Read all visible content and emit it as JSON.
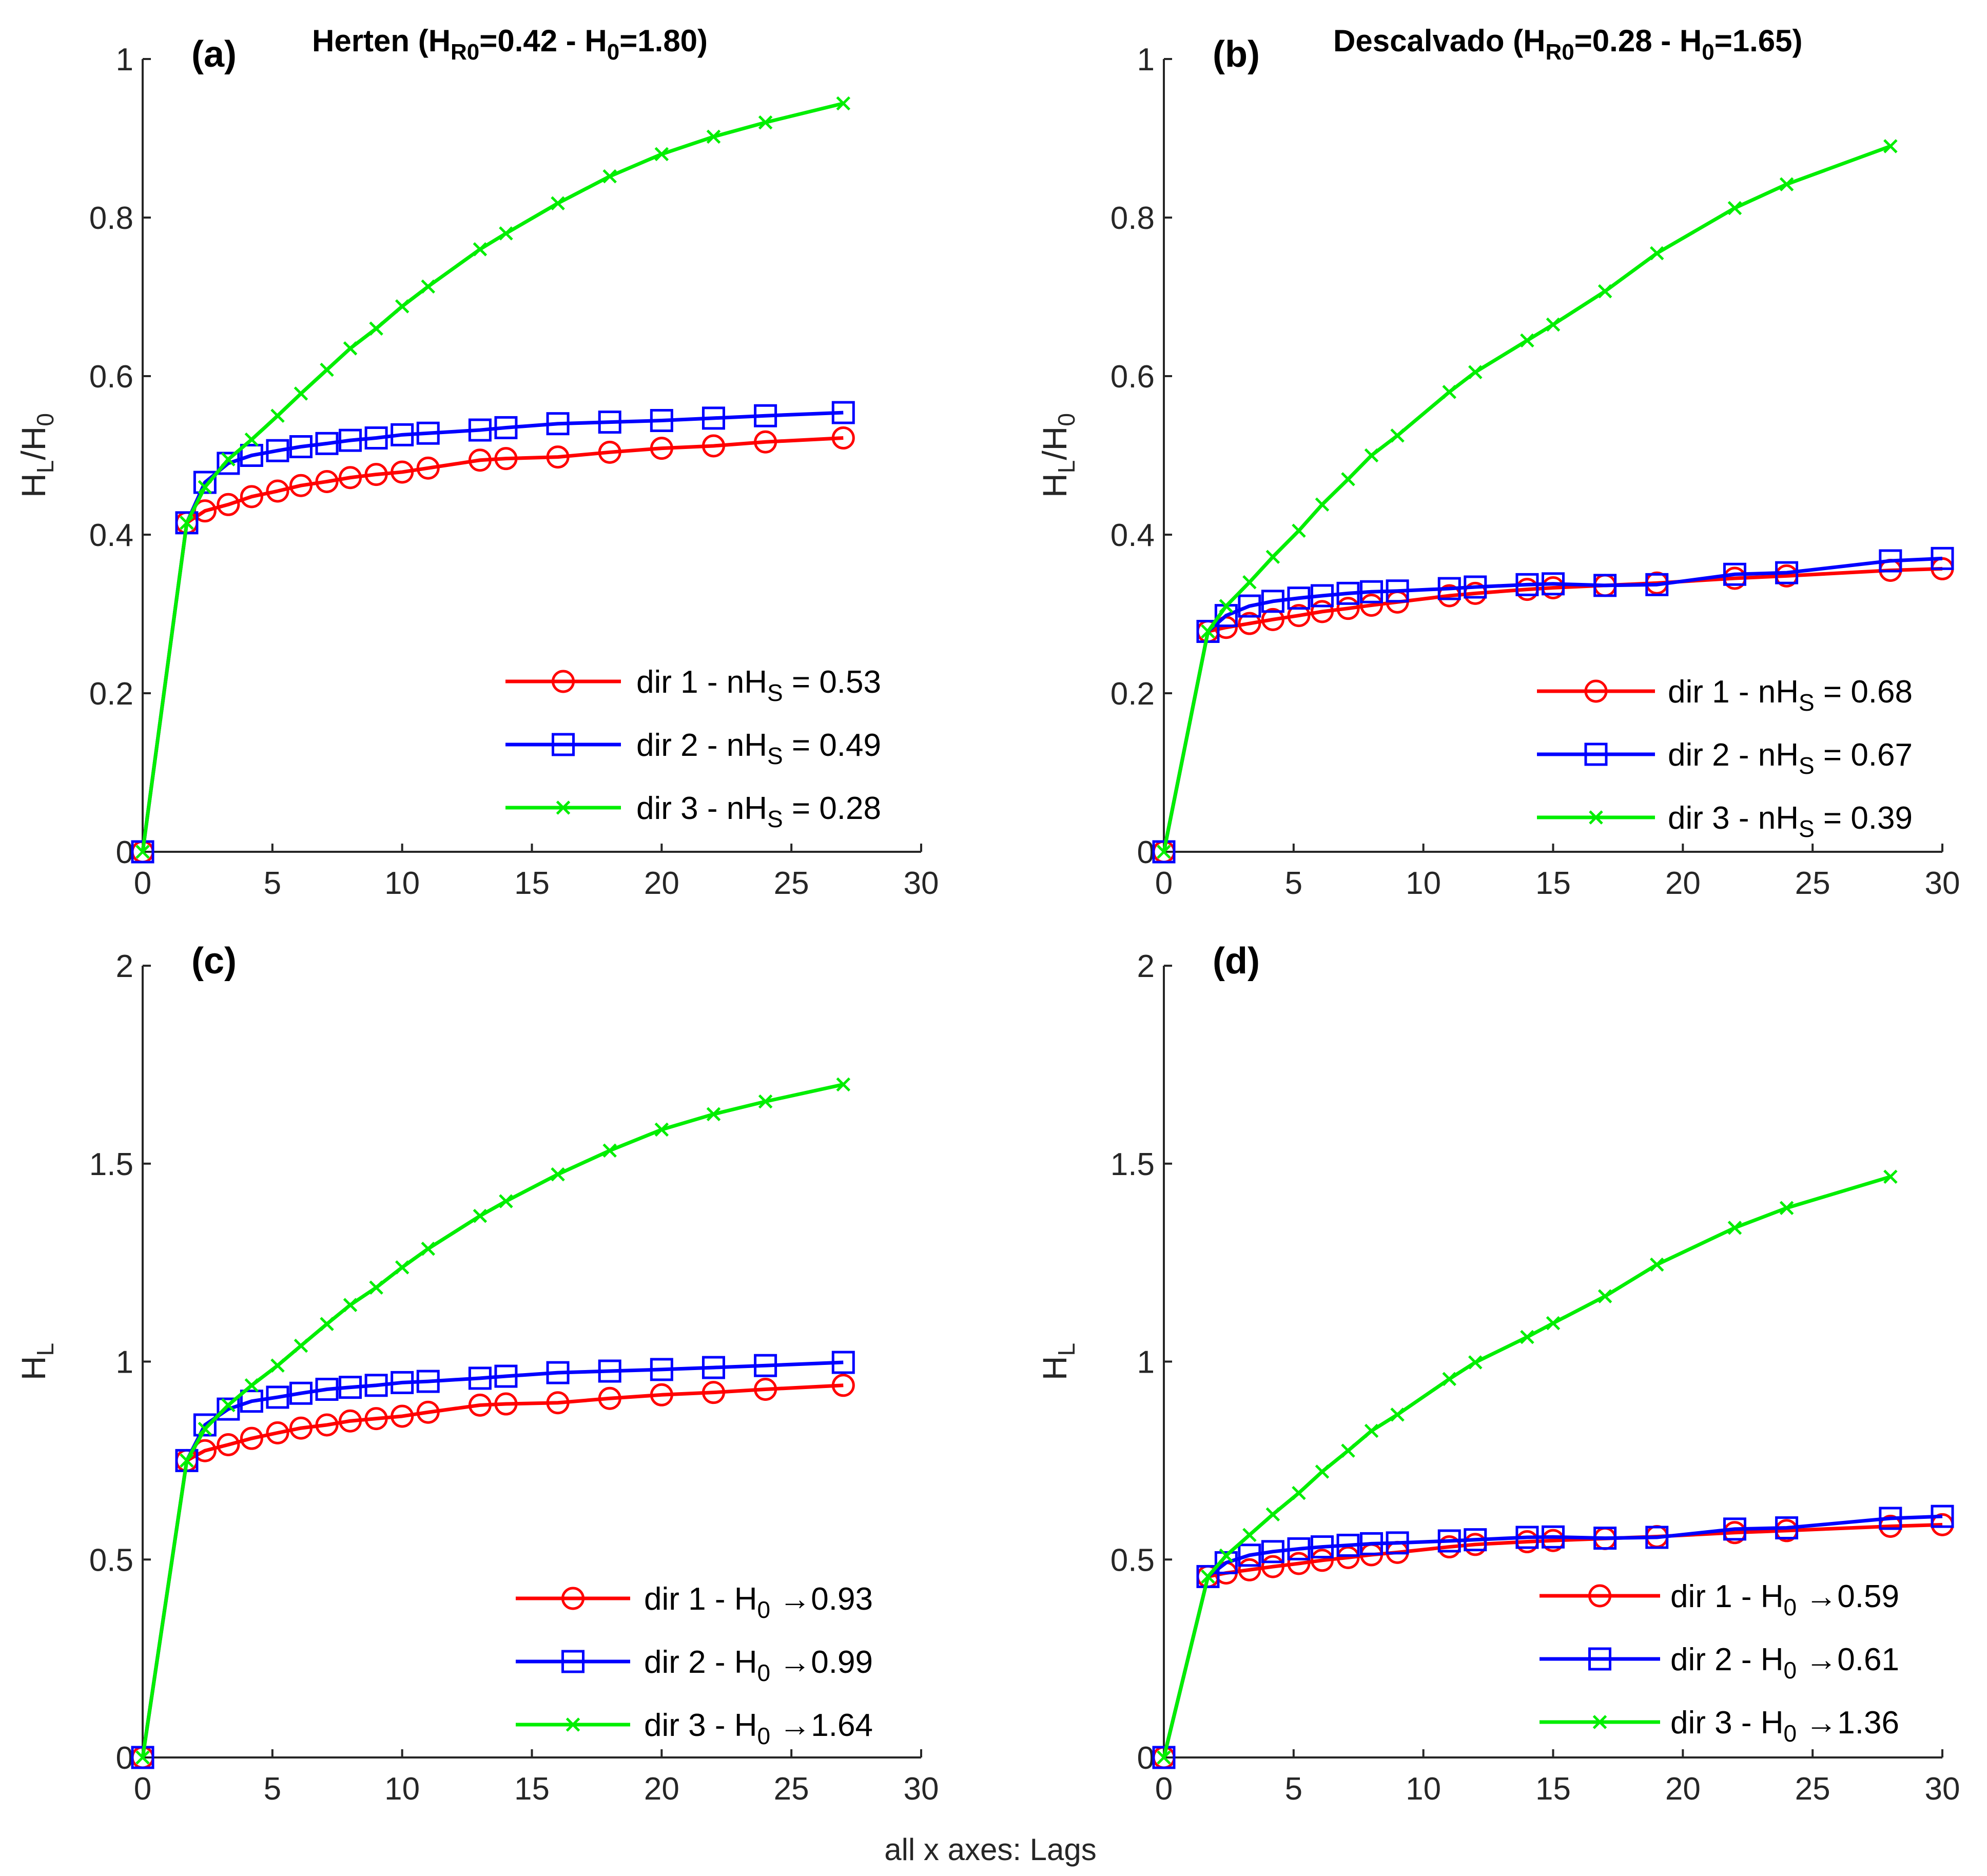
{
  "figure": {
    "footer_text": "all x axes: Lags",
    "colors": {
      "dir1": "#ff0000",
      "dir2": "#0000ff",
      "dir3": "#00ee00",
      "axis": "#262626"
    }
  },
  "chart_data": [
    {
      "id": "a",
      "type": "line",
      "panel_label": "(a)",
      "title": {
        "pre": "Herten (H",
        "sub1": "R0",
        "mid": "=0.42 - H",
        "sub2": "0",
        "post": "=1.80)"
      },
      "xlabel": "",
      "ylabel": {
        "main": "H",
        "sub1": "L",
        "mid": "/H",
        "sub2": "0"
      },
      "xlim": [
        0,
        30
      ],
      "ylim": [
        0,
        1
      ],
      "xticks": [
        0,
        5,
        10,
        15,
        20,
        25,
        30
      ],
      "xtick_labels": [
        "0",
        "5",
        "10",
        "15",
        "20",
        "25",
        "30"
      ],
      "yticks": [
        0,
        0.2,
        0.4,
        0.6,
        0.8,
        1
      ],
      "ytick_labels": [
        "0",
        "0.2",
        "0.4",
        "0.6",
        "0.8",
        "1"
      ],
      "legend_position": "bottom-right",
      "series": [
        {
          "name": "dir 1",
          "marker": "circle",
          "color": "#ff0000",
          "legend": {
            "pre": "dir 1 - nH",
            "sub": "S",
            "post": "= 0.53"
          },
          "x": [
            0,
            1.7,
            2.4,
            3.3,
            4.2,
            5.2,
            6.1,
            7.1,
            8.0,
            9.0,
            10.0,
            11.0,
            13.0,
            14.0,
            16.0,
            18.0,
            20.0,
            22.0,
            24.0,
            27.0
          ],
          "y": [
            0,
            0.415,
            0.43,
            0.438,
            0.448,
            0.455,
            0.462,
            0.467,
            0.472,
            0.476,
            0.479,
            0.484,
            0.494,
            0.496,
            0.498,
            0.504,
            0.509,
            0.512,
            0.517,
            0.522
          ]
        },
        {
          "name": "dir 2",
          "marker": "square",
          "color": "#0000ff",
          "legend": {
            "pre": "dir 2 - nH",
            "sub": "S",
            "post": "= 0.49"
          },
          "x": [
            0,
            1.7,
            2.4,
            3.3,
            4.2,
            5.2,
            6.1,
            7.1,
            8.0,
            9.0,
            10.0,
            11.0,
            13.0,
            14.0,
            16.0,
            18.0,
            20.0,
            22.0,
            24.0,
            27.0
          ],
          "y": [
            0,
            0.415,
            0.466,
            0.49,
            0.5,
            0.506,
            0.511,
            0.515,
            0.519,
            0.522,
            0.526,
            0.528,
            0.532,
            0.535,
            0.54,
            0.542,
            0.544,
            0.547,
            0.55,
            0.554
          ]
        },
        {
          "name": "dir 3",
          "marker": "x",
          "color": "#00ee00",
          "legend": {
            "pre": "dir 3 - nH",
            "sub": "S",
            "post": "= 0.28"
          },
          "x": [
            0,
            1.7,
            2.4,
            3.3,
            4.2,
            5.2,
            6.1,
            7.1,
            8.0,
            9.0,
            10.0,
            11.0,
            13.0,
            14.0,
            16.0,
            18.0,
            20.0,
            22.0,
            24.0,
            27.0
          ],
          "y": [
            0,
            0.415,
            0.46,
            0.495,
            0.52,
            0.55,
            0.578,
            0.608,
            0.635,
            0.66,
            0.688,
            0.713,
            0.76,
            0.78,
            0.818,
            0.852,
            0.88,
            0.902,
            0.92,
            0.944
          ]
        }
      ]
    },
    {
      "id": "b",
      "type": "line",
      "panel_label": "(b)",
      "title": {
        "pre": "Descalvado (H",
        "sub1": "R0",
        "mid": "=0.28 - H",
        "sub2": "0",
        "post": "=1.65)"
      },
      "xlabel": "",
      "ylabel": {
        "main": "H",
        "sub1": "L",
        "mid": "/H",
        "sub2": "0"
      },
      "xlim": [
        0,
        30
      ],
      "ylim": [
        0,
        1
      ],
      "xticks": [
        0,
        5,
        10,
        15,
        20,
        25,
        30
      ],
      "xtick_labels": [
        "0",
        "5",
        "10",
        "15",
        "20",
        "25",
        "30"
      ],
      "yticks": [
        0,
        0.2,
        0.4,
        0.6,
        0.8,
        1
      ],
      "ytick_labels": [
        "0",
        "0.2",
        "0.4",
        "0.6",
        "0.8",
        "1"
      ],
      "legend_position": "bottom-right",
      "series": [
        {
          "name": "dir 1",
          "marker": "circle",
          "color": "#ff0000",
          "legend": {
            "pre": "dir 1 - nH",
            "sub": "S",
            "post": "= 0.68"
          },
          "x": [
            0,
            1.7,
            2.4,
            3.3,
            4.2,
            5.2,
            6.1,
            7.1,
            8.0,
            9.0,
            11.0,
            12.0,
            14.0,
            15.0,
            17.0,
            19.0,
            22.0,
            24.0,
            28.0,
            30.0
          ],
          "y": [
            0,
            0.278,
            0.283,
            0.288,
            0.293,
            0.298,
            0.303,
            0.307,
            0.311,
            0.315,
            0.323,
            0.326,
            0.331,
            0.333,
            0.336,
            0.339,
            0.345,
            0.348,
            0.355,
            0.357
          ]
        },
        {
          "name": "dir 2",
          "marker": "square",
          "color": "#0000ff",
          "legend": {
            "pre": "dir 2 - nH",
            "sub": "S",
            "post": "= 0.67"
          },
          "x": [
            0,
            1.7,
            2.4,
            3.3,
            4.2,
            5.2,
            6.1,
            7.1,
            8.0,
            9.0,
            11.0,
            12.0,
            14.0,
            15.0,
            17.0,
            19.0,
            22.0,
            24.0,
            28.0,
            30.0
          ],
          "y": [
            0,
            0.278,
            0.298,
            0.31,
            0.316,
            0.32,
            0.323,
            0.326,
            0.328,
            0.329,
            0.332,
            0.334,
            0.337,
            0.338,
            0.336,
            0.337,
            0.35,
            0.352,
            0.367,
            0.37
          ]
        },
        {
          "name": "dir 3",
          "marker": "x",
          "color": "#00ee00",
          "legend": {
            "pre": "dir 3 - nH",
            "sub": "S",
            "post": "= 0.39"
          },
          "x": [
            0,
            1.7,
            2.4,
            3.3,
            4.2,
            5.2,
            6.1,
            7.1,
            8.0,
            9.0,
            11.0,
            12.0,
            14.0,
            15.0,
            17.0,
            19.0,
            22.0,
            24.0,
            28.0
          ],
          "y": [
            0,
            0.278,
            0.31,
            0.34,
            0.372,
            0.405,
            0.438,
            0.47,
            0.5,
            0.525,
            0.58,
            0.605,
            0.645,
            0.665,
            0.707,
            0.755,
            0.812,
            0.842,
            0.89
          ]
        }
      ]
    },
    {
      "id": "c",
      "type": "line",
      "panel_label": "(c)",
      "title": null,
      "xlabel": "",
      "ylabel": {
        "main": "H",
        "sub1": "L",
        "mid": "",
        "sub2": ""
      },
      "xlim": [
        0,
        30
      ],
      "ylim": [
        0,
        2
      ],
      "xticks": [
        0,
        5,
        10,
        15,
        20,
        25,
        30
      ],
      "xtick_labels": [
        "0",
        "5",
        "10",
        "15",
        "20",
        "25",
        "30"
      ],
      "yticks": [
        0,
        0.5,
        1,
        1.5,
        2
      ],
      "ytick_labels": [
        "0",
        "0.5",
        "1",
        "1.5",
        "2"
      ],
      "legend_position": "bottom-right",
      "series": [
        {
          "name": "dir 1",
          "marker": "circle",
          "color": "#ff0000",
          "legend": {
            "pre": "dir 1 - H",
            "sub": "0",
            "post": "→0.93"
          },
          "x": [
            0,
            1.7,
            2.4,
            3.3,
            4.2,
            5.2,
            6.1,
            7.1,
            8.0,
            9.0,
            10.0,
            11.0,
            13.0,
            14.0,
            16.0,
            18.0,
            20.0,
            22.0,
            24.0,
            27.0
          ],
          "y": [
            0,
            0.75,
            0.775,
            0.79,
            0.806,
            0.82,
            0.832,
            0.84,
            0.85,
            0.856,
            0.862,
            0.872,
            0.89,
            0.893,
            0.896,
            0.907,
            0.916,
            0.922,
            0.93,
            0.94
          ]
        },
        {
          "name": "dir 2",
          "marker": "square",
          "color": "#0000ff",
          "legend": {
            "pre": "dir 2 - H",
            "sub": "0",
            "post": "→0.99"
          },
          "x": [
            0,
            1.7,
            2.4,
            3.3,
            4.2,
            5.2,
            6.1,
            7.1,
            8.0,
            9.0,
            10.0,
            11.0,
            13.0,
            14.0,
            16.0,
            18.0,
            20.0,
            22.0,
            24.0,
            27.0
          ],
          "y": [
            0,
            0.75,
            0.84,
            0.88,
            0.9,
            0.91,
            0.92,
            0.93,
            0.935,
            0.94,
            0.947,
            0.95,
            0.958,
            0.963,
            0.972,
            0.976,
            0.98,
            0.985,
            0.99,
            0.998
          ]
        },
        {
          "name": "dir 3",
          "marker": "x",
          "color": "#00ee00",
          "legend": {
            "pre": "dir 3 - H",
            "sub": "0",
            "post": "→1.64"
          },
          "x": [
            0,
            1.7,
            2.4,
            3.3,
            4.2,
            5.2,
            6.1,
            7.1,
            8.0,
            9.0,
            10.0,
            11.0,
            13.0,
            14.0,
            16.0,
            18.0,
            20.0,
            22.0,
            24.0,
            27.0
          ],
          "y": [
            0,
            0.75,
            0.83,
            0.89,
            0.94,
            0.99,
            1.04,
            1.095,
            1.143,
            1.187,
            1.238,
            1.285,
            1.368,
            1.405,
            1.473,
            1.533,
            1.586,
            1.625,
            1.657,
            1.7
          ]
        }
      ]
    },
    {
      "id": "d",
      "type": "line",
      "panel_label": "(d)",
      "title": null,
      "xlabel": "",
      "ylabel": {
        "main": "H",
        "sub1": "L",
        "mid": "",
        "sub2": ""
      },
      "xlim": [
        0,
        30
      ],
      "ylim": [
        0,
        2
      ],
      "xticks": [
        0,
        5,
        10,
        15,
        20,
        25,
        30
      ],
      "xtick_labels": [
        "0",
        "5",
        "10",
        "15",
        "20",
        "25",
        "30"
      ],
      "yticks": [
        0,
        0.5,
        1,
        1.5,
        2
      ],
      "ytick_labels": [
        "0",
        "0.5",
        "1",
        "1.5",
        "2"
      ],
      "legend_position": "bottom-right",
      "series": [
        {
          "name": "dir 1",
          "marker": "circle",
          "color": "#ff0000",
          "legend": {
            "pre": "dir 1 - H",
            "sub": "0",
            "post": "→0.59"
          },
          "x": [
            0,
            1.7,
            2.4,
            3.3,
            4.2,
            5.2,
            6.1,
            7.1,
            8.0,
            9.0,
            11.0,
            12.0,
            14.0,
            15.0,
            17.0,
            19.0,
            22.0,
            24.0,
            28.0,
            30.0
          ],
          "y": [
            0,
            0.457,
            0.466,
            0.474,
            0.482,
            0.49,
            0.498,
            0.505,
            0.512,
            0.518,
            0.532,
            0.538,
            0.545,
            0.548,
            0.553,
            0.558,
            0.568,
            0.573,
            0.584,
            0.588
          ]
        },
        {
          "name": "dir 2",
          "marker": "square",
          "color": "#0000ff",
          "legend": {
            "pre": "dir 2 - H",
            "sub": "0",
            "post": "→0.61"
          },
          "x": [
            0,
            1.7,
            2.4,
            3.3,
            4.2,
            5.2,
            6.1,
            7.1,
            8.0,
            9.0,
            11.0,
            12.0,
            14.0,
            15.0,
            17.0,
            19.0,
            22.0,
            24.0,
            28.0,
            30.0
          ],
          "y": [
            0,
            0.457,
            0.492,
            0.511,
            0.52,
            0.527,
            0.532,
            0.536,
            0.54,
            0.542,
            0.547,
            0.55,
            0.556,
            0.557,
            0.554,
            0.556,
            0.577,
            0.58,
            0.604,
            0.609
          ]
        },
        {
          "name": "dir 3",
          "marker": "x",
          "color": "#00ee00",
          "legend": {
            "pre": "dir 3 - H",
            "sub": "0",
            "post": "→1.36"
          },
          "x": [
            0,
            1.7,
            2.4,
            3.3,
            4.2,
            5.2,
            6.1,
            7.1,
            8.0,
            9.0,
            11.0,
            12.0,
            14.0,
            15.0,
            17.0,
            19.0,
            22.0,
            24.0,
            28.0
          ],
          "y": [
            0,
            0.457,
            0.51,
            0.562,
            0.614,
            0.668,
            0.722,
            0.775,
            0.825,
            0.866,
            0.956,
            0.998,
            1.062,
            1.097,
            1.165,
            1.245,
            1.338,
            1.388,
            1.467
          ]
        }
      ]
    }
  ]
}
